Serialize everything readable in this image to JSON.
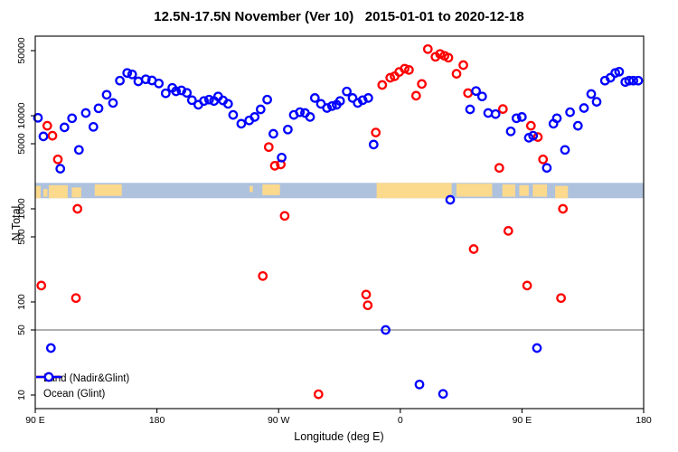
{
  "title": "12.5N-17.5N November (Ver 10)   2015-01-01 to 2020-12-18",
  "axes": {
    "y_label": "N Total",
    "x_label": "Longitude (deg E)",
    "y_tick_values": [
      10,
      50,
      100,
      500,
      1000,
      5000,
      10000,
      50000
    ],
    "y_tick_labels": [
      "10",
      "50",
      "100",
      "500",
      "1000",
      "5000",
      "10000",
      "50000"
    ],
    "x_tick_positions_deg": [
      0,
      90,
      180,
      270,
      360,
      450
    ],
    "x_tick_labels": [
      "90 E",
      "180",
      "90 W",
      "0",
      "90 E",
      "180"
    ]
  },
  "legend": {
    "items": [
      {
        "label": "Land (Nadir&Glint)",
        "color": "#ff0000"
      },
      {
        "label": "Ocean (Glint)",
        "color": "#0000ff"
      }
    ]
  },
  "chart_data": {
    "type": "scatter",
    "title": "12.5N-17.5N November (Ver 10)   2015-01-01 to 2020-12-18",
    "xlabel": "Longitude (deg E)",
    "ylabel": "N Total",
    "y_scale": "log",
    "ylim": [
      7.2,
      71000
    ],
    "x_axis_note": "x = degrees along wrapped longitude axis; 0=90E, 90=180, 180=90W, 270=0, 360=90E, 450=180",
    "x_span_deg": 450,
    "grid": false,
    "legend_position": "bottom-left-inside",
    "reference_line": {
      "y": 50,
      "color": "#808080"
    },
    "map_strip": {
      "description": "world-map latitude band drawn across plot",
      "value_top": 1900,
      "value_bottom": 1300,
      "ocean_color": "#aec2de",
      "land_color": "#fbd98d",
      "land_patches": [
        {
          "from": 0,
          "to": 4,
          "t": 0.2,
          "b": 1
        },
        {
          "from": 6,
          "to": 9,
          "t": 0.4,
          "b": 0.9
        },
        {
          "from": 10,
          "to": 24,
          "t": 0.15,
          "b": 1
        },
        {
          "from": 27,
          "to": 34,
          "t": 0.3,
          "b": 0.95
        },
        {
          "from": 44,
          "to": 64,
          "t": 0.1,
          "b": 0.85
        },
        {
          "from": 158.5,
          "to": 161,
          "t": 0.2,
          "b": 0.6
        },
        {
          "from": 168,
          "to": 181,
          "t": 0.1,
          "b": 0.8
        },
        {
          "from": 252.5,
          "to": 308,
          "t": 0,
          "b": 1
        },
        {
          "from": 311.5,
          "to": 338,
          "t": 0.05,
          "b": 0.9
        },
        {
          "from": 345.5,
          "to": 355,
          "t": 0.1,
          "b": 0.9
        },
        {
          "from": 358,
          "to": 365,
          "t": 0.15,
          "b": 0.85
        },
        {
          "from": 368,
          "to": 378.5,
          "t": 0.1,
          "b": 0.9
        },
        {
          "from": 384.5,
          "to": 394,
          "t": 0.2,
          "b": 1
        }
      ]
    },
    "series": [
      {
        "name": "Land (Nadir&Glint)",
        "color": "#ff0000",
        "points": [
          [
            4.5,
            150
          ],
          [
            8.9,
            7800
          ],
          [
            12.7,
            6100
          ],
          [
            16.7,
            3400
          ],
          [
            30.1,
            110
          ],
          [
            31.2,
            1000
          ],
          [
            168.3,
            190
          ],
          [
            172.7,
            4600
          ],
          [
            177.2,
            2900
          ],
          [
            181.6,
            3000
          ],
          [
            184.5,
            840
          ],
          [
            209.5,
            10.2
          ],
          [
            244.7,
            120
          ],
          [
            245.9,
            92
          ],
          [
            251.9,
            6600
          ],
          [
            256.6,
            21400
          ],
          [
            262.6,
            25600
          ],
          [
            265.8,
            26500
          ],
          [
            269.2,
            29500
          ],
          [
            273.2,
            32000
          ],
          [
            276.4,
            31000
          ],
          [
            281.7,
            16400
          ],
          [
            285.9,
            21900
          ],
          [
            290.4,
            52000
          ],
          [
            296,
            43000
          ],
          [
            299.4,
            46000
          ],
          [
            302.7,
            44000
          ],
          [
            305.6,
            42000
          ],
          [
            311.6,
            28200
          ],
          [
            316.6,
            35000
          ],
          [
            320.1,
            17500
          ],
          [
            324.3,
            370
          ],
          [
            343.2,
            2750
          ],
          [
            345.9,
            11800
          ],
          [
            349.9,
            580
          ],
          [
            363.8,
            150
          ],
          [
            366.6,
            7800
          ],
          [
            371.8,
            5900
          ],
          [
            375.6,
            3400
          ],
          [
            388.9,
            110
          ],
          [
            390.3,
            1000
          ]
        ]
      },
      {
        "name": "Ocean (Glint)",
        "color": "#0000ff",
        "points": [
          [
            2,
            9500
          ],
          [
            6,
            6000
          ],
          [
            11.6,
            32
          ],
          [
            18.5,
            2700
          ],
          [
            21.6,
            7500
          ],
          [
            27.2,
            9400
          ],
          [
            32.3,
            4300
          ],
          [
            37.4,
            10700
          ],
          [
            43,
            7600
          ],
          [
            46.8,
            12000
          ],
          [
            52.8,
            16800
          ],
          [
            57.5,
            13700
          ],
          [
            62.6,
            23800
          ],
          [
            68,
            28800
          ],
          [
            71.7,
            27800
          ],
          [
            76.2,
            23400
          ],
          [
            81.8,
            24600
          ],
          [
            86.3,
            23900
          ],
          [
            91.4,
            22200
          ],
          [
            96.5,
            17400
          ],
          [
            101.4,
            19900
          ],
          [
            104.1,
            18300
          ],
          [
            108.1,
            18700
          ],
          [
            112.1,
            17600
          ],
          [
            115.9,
            14700
          ],
          [
            120.6,
            13100
          ],
          [
            124.8,
            14400
          ],
          [
            128.6,
            14900
          ],
          [
            132.2,
            14400
          ],
          [
            135.3,
            16100
          ],
          [
            138.9,
            14600
          ],
          [
            142.6,
            13400
          ],
          [
            146.4,
            10200
          ],
          [
            152.4,
            8200
          ],
          [
            158.3,
            8900
          ],
          [
            162.3,
            9700
          ],
          [
            166.7,
            11700
          ],
          [
            171.6,
            14900
          ],
          [
            176.1,
            6400
          ],
          [
            182.3,
            3550
          ],
          [
            186.8,
            7100
          ],
          [
            191.2,
            10200
          ],
          [
            195.7,
            10900
          ],
          [
            199.5,
            10700
          ],
          [
            203.3,
            9700
          ],
          [
            206.8,
            15500
          ],
          [
            211.3,
            13400
          ],
          [
            215.8,
            12100
          ],
          [
            219.5,
            12700
          ],
          [
            222.9,
            13100
          ],
          [
            225.5,
            14400
          ],
          [
            230.4,
            18200
          ],
          [
            234.7,
            15500
          ],
          [
            238.5,
            13700
          ],
          [
            242.2,
            14700
          ],
          [
            246.3,
            15500
          ],
          [
            250.3,
            4900
          ],
          [
            259.2,
            50
          ],
          [
            284.2,
            13
          ],
          [
            301.6,
            10.3
          ],
          [
            306.9,
            1250
          ],
          [
            321.6,
            11700
          ],
          [
            326,
            18400
          ],
          [
            330.5,
            16100
          ],
          [
            335,
            10700
          ],
          [
            340.5,
            10400
          ],
          [
            351.7,
            6800
          ],
          [
            355.9,
            9400
          ],
          [
            359.9,
            9700
          ],
          [
            365.1,
            5800
          ],
          [
            368.2,
            6100
          ],
          [
            371.1,
            32
          ],
          [
            378.4,
            2750
          ],
          [
            383.3,
            8200
          ],
          [
            385.8,
            9400
          ],
          [
            391.8,
            4300
          ],
          [
            395.6,
            10900
          ],
          [
            401.4,
            7800
          ],
          [
            405.9,
            12100
          ],
          [
            411.2,
            17100
          ],
          [
            415.2,
            14100
          ],
          [
            421.4,
            23800
          ],
          [
            425.4,
            25600
          ],
          [
            429,
            28800
          ],
          [
            431.9,
            29700
          ],
          [
            436.4,
            23000
          ],
          [
            439.3,
            23800
          ],
          [
            442.4,
            23800
          ],
          [
            446,
            23800
          ]
        ]
      }
    ]
  }
}
